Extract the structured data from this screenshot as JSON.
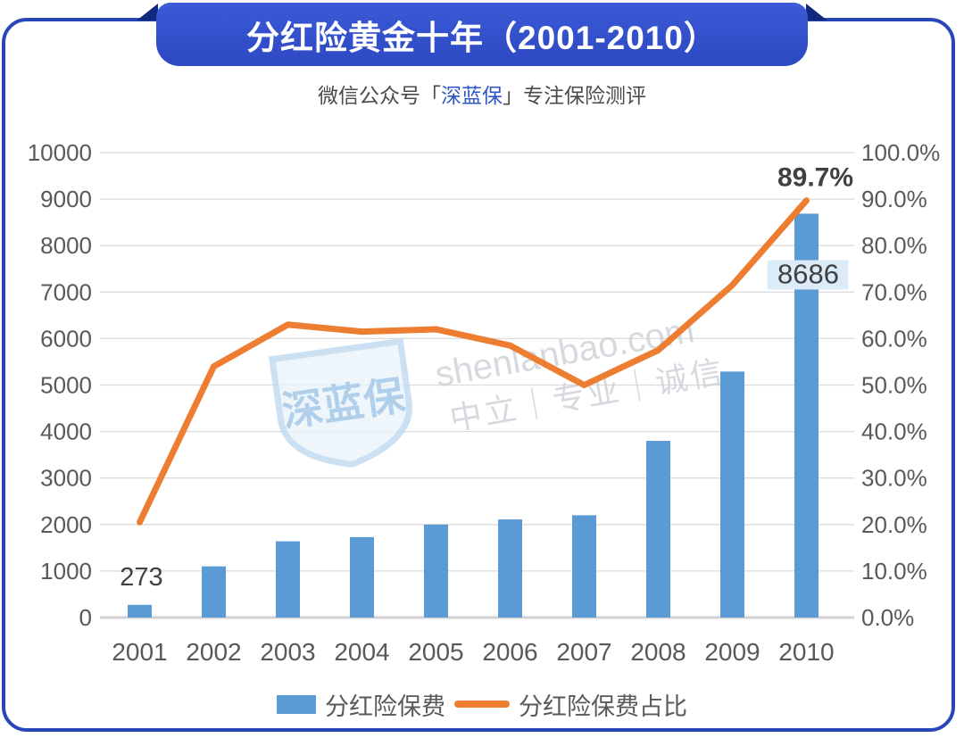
{
  "banner": {
    "title": "分红险黄金十年（2001-2010）"
  },
  "subtitle": {
    "prefix": "微信公众号「",
    "brand": "深蓝保",
    "suffix": "」专注保险测评"
  },
  "watermark": {
    "shield_text": "深蓝保",
    "line1": "shenlanbao.com",
    "line2": "中立｜专业｜诚信"
  },
  "colors": {
    "banner_blue": "#3350CB",
    "card_border_blue": "#2946B8",
    "ribbon_fold_navy": "#12297E",
    "bar_blue": "#5B9BD5",
    "line_orange": "#ED7D31",
    "grid_gray": "#DBDBDB",
    "axis_text_gray": "#595959",
    "data_label_gray": "#404040",
    "highlight_label_bg": "#DCEBF8",
    "brand_text_blue": "#2F55C8"
  },
  "legend": {
    "items": [
      {
        "label": "分红险保费",
        "swatch": "bar"
      },
      {
        "label": "分红险保费占比",
        "swatch": "line"
      }
    ]
  },
  "chart_data": {
    "type": "combo",
    "title": "分红险黄金十年（2001-2010）",
    "categories": [
      "2001",
      "2002",
      "2003",
      "2004",
      "2005",
      "2006",
      "2007",
      "2008",
      "2009",
      "2010"
    ],
    "series": [
      {
        "name": "分红险保费",
        "type": "bar",
        "axis": "left",
        "color": "#5B9BD5",
        "values": [
          273,
          1100,
          1640,
          1730,
          2000,
          2110,
          2200,
          3800,
          5290,
          8686
        ]
      },
      {
        "name": "分红险保费占比",
        "type": "line",
        "axis": "right",
        "color": "#ED7D31",
        "values_percent": [
          20.5,
          54,
          63,
          61.5,
          62,
          58.5,
          50,
          57.5,
          71.5,
          89.7
        ]
      }
    ],
    "left_axis": {
      "min": 0,
      "max": 10000,
      "step": 1000,
      "labels": [
        "0",
        "1000",
        "2000",
        "3000",
        "4000",
        "5000",
        "6000",
        "7000",
        "8000",
        "9000",
        "10000"
      ]
    },
    "right_axis": {
      "min": 0,
      "max": 100,
      "step": 10,
      "labels": [
        "0.0%",
        "10.0%",
        "20.0%",
        "30.0%",
        "40.0%",
        "50.0%",
        "60.0%",
        "70.0%",
        "80.0%",
        "90.0%",
        "100.0%"
      ]
    },
    "point_labels": [
      {
        "series": "分红险保费",
        "category": "2001",
        "text": "273",
        "highlighted": false
      },
      {
        "series": "分红险保费",
        "category": "2010",
        "text": "8686",
        "highlighted": true
      },
      {
        "series": "分红险保费占比",
        "category": "2010",
        "text": "89.7%",
        "highlighted": false
      }
    ],
    "grid": true,
    "legend_position": "bottom"
  }
}
